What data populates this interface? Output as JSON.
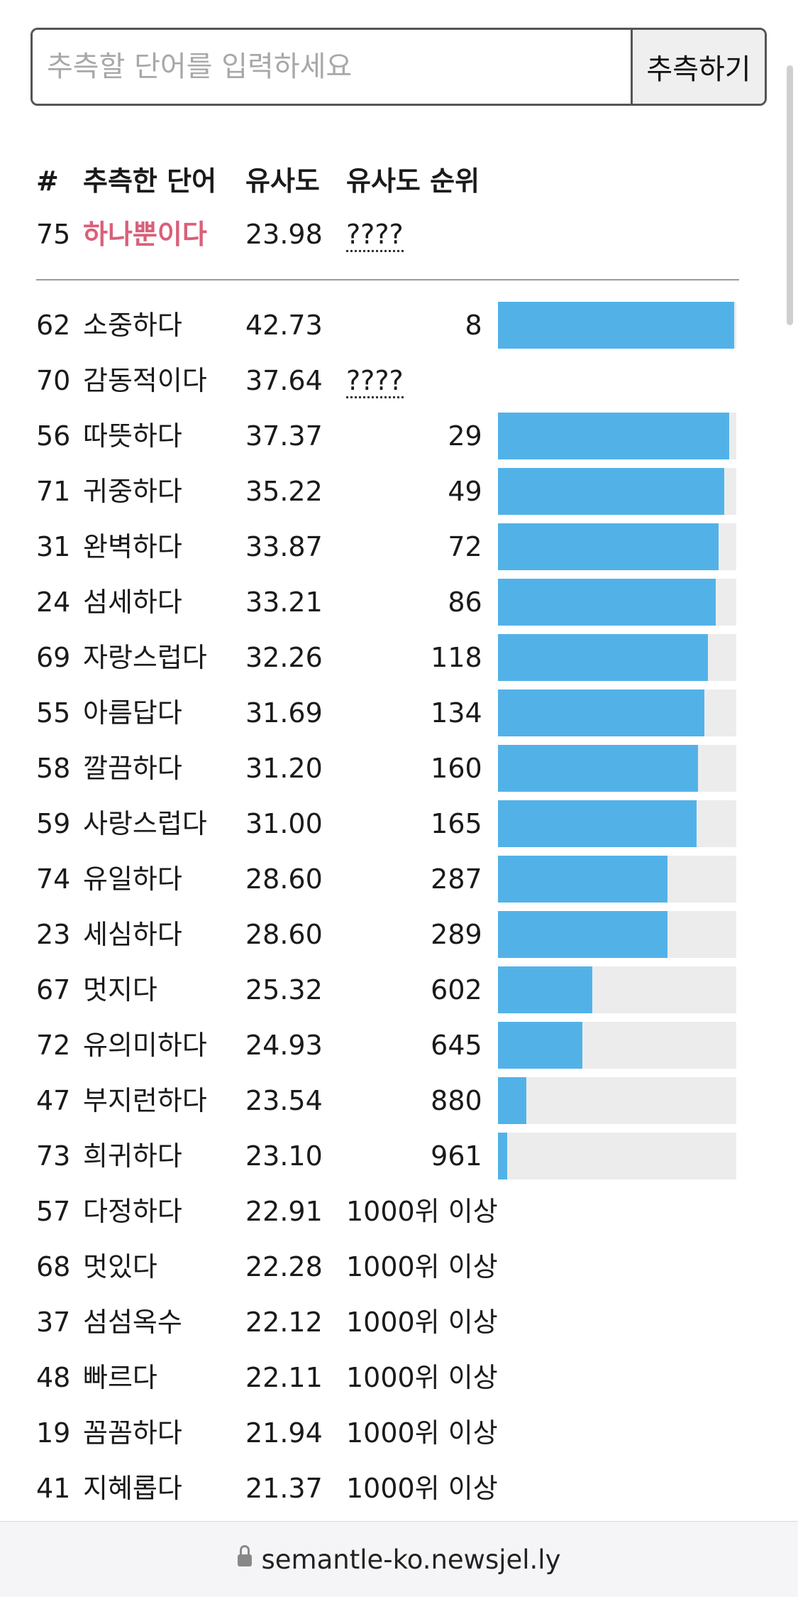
{
  "guess_form": {
    "placeholder": "추측할 단어를 입력하세요",
    "button_label": "추측하기"
  },
  "table_header": {
    "num": "#",
    "word": "추측한 단어",
    "similarity": "유사도",
    "rank": "유사도 순위"
  },
  "latest_guess": {
    "num": "75",
    "word": "하나뿐이다",
    "similarity": "23.98",
    "rank": "????"
  },
  "guesses": [
    {
      "num": "62",
      "word": "소중하다",
      "similarity": "42.73",
      "rank": "8",
      "proximity": 0.992
    },
    {
      "num": "70",
      "word": "감동적이다",
      "similarity": "37.64",
      "rank": "????",
      "unknown": true
    },
    {
      "num": "56",
      "word": "따뜻하다",
      "similarity": "37.37",
      "rank": "29",
      "proximity": 0.971
    },
    {
      "num": "71",
      "word": "귀중하다",
      "similarity": "35.22",
      "rank": "49",
      "proximity": 0.951
    },
    {
      "num": "31",
      "word": "완벽하다",
      "similarity": "33.87",
      "rank": "72",
      "proximity": 0.928
    },
    {
      "num": "24",
      "word": "섬세하다",
      "similarity": "33.21",
      "rank": "86",
      "proximity": 0.914
    },
    {
      "num": "69",
      "word": "자랑스럽다",
      "similarity": "32.26",
      "rank": "118",
      "proximity": 0.882
    },
    {
      "num": "55",
      "word": "아름답다",
      "similarity": "31.69",
      "rank": "134",
      "proximity": 0.866
    },
    {
      "num": "58",
      "word": "깔끔하다",
      "similarity": "31.20",
      "rank": "160",
      "proximity": 0.84
    },
    {
      "num": "59",
      "word": "사랑스럽다",
      "similarity": "31.00",
      "rank": "165",
      "proximity": 0.835
    },
    {
      "num": "74",
      "word": "유일하다",
      "similarity": "28.60",
      "rank": "287",
      "proximity": 0.713
    },
    {
      "num": "23",
      "word": "세심하다",
      "similarity": "28.60",
      "rank": "289",
      "proximity": 0.711
    },
    {
      "num": "67",
      "word": "멋지다",
      "similarity": "25.32",
      "rank": "602",
      "proximity": 0.398
    },
    {
      "num": "72",
      "word": "유의미하다",
      "similarity": "24.93",
      "rank": "645",
      "proximity": 0.355
    },
    {
      "num": "47",
      "word": "부지런하다",
      "similarity": "23.54",
      "rank": "880",
      "proximity": 0.12
    },
    {
      "num": "73",
      "word": "희귀하다",
      "similarity": "23.10",
      "rank": "961",
      "proximity": 0.039
    },
    {
      "num": "57",
      "word": "다정하다",
      "similarity": "22.91",
      "rank": "1000위 이상"
    },
    {
      "num": "68",
      "word": "멋있다",
      "similarity": "22.28",
      "rank": "1000위 이상"
    },
    {
      "num": "37",
      "word": "섬섬옥수",
      "similarity": "22.12",
      "rank": "1000위 이상"
    },
    {
      "num": "48",
      "word": "빠르다",
      "similarity": "22.11",
      "rank": "1000위 이상"
    },
    {
      "num": "19",
      "word": "꼼꼼하다",
      "similarity": "21.94",
      "rank": "1000위 이상"
    },
    {
      "num": "41",
      "word": "지혜롭다",
      "similarity": "21.37",
      "rank": "1000위 이상"
    }
  ],
  "browser": {
    "url": "semantle-ko.newsjel.ly",
    "lock_icon": "lock-icon"
  },
  "colors": {
    "bar_fill": "#52b2e8",
    "bar_track": "#ececec",
    "latest_word": "#d9607a"
  }
}
